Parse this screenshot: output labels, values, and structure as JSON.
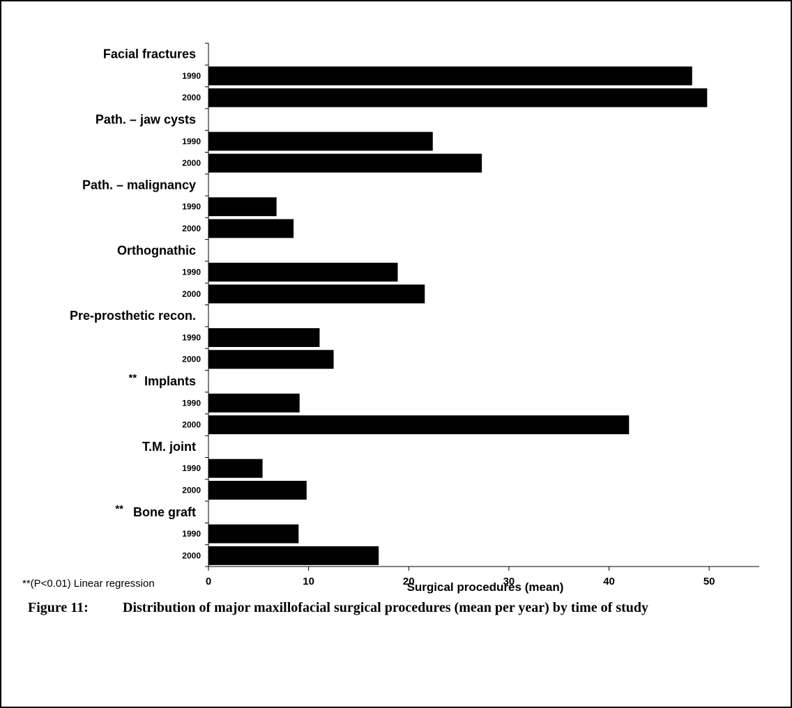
{
  "figure": {
    "label": "Figure 11:",
    "caption": "Distribution of major maxillofacial surgical procedures (mean per year) by time of study",
    "footnote": "**(P<0.01) Linear regression"
  },
  "chart_data": {
    "type": "bar",
    "orientation": "horizontal",
    "xlabel": "Surgical procedures (mean)",
    "xlim": [
      0,
      55
    ],
    "xticks": [
      0,
      10,
      20,
      30,
      40,
      50
    ],
    "grid": false,
    "bar_color": "#000000",
    "groups": [
      {
        "label": "Facial fractures",
        "marker": "",
        "bars": [
          {
            "year": "1990",
            "value": 48.3
          },
          {
            "year": "2000",
            "value": 49.8
          }
        ]
      },
      {
        "label": "Path. – jaw cysts",
        "marker": "",
        "bars": [
          {
            "year": "1990",
            "value": 22.4
          },
          {
            "year": "2000",
            "value": 27.3
          }
        ]
      },
      {
        "label": "Path. –  malignancy",
        "marker": "",
        "bars": [
          {
            "year": "1990",
            "value": 6.8
          },
          {
            "year": "2000",
            "value": 8.5
          }
        ]
      },
      {
        "label": "Orthognathic",
        "marker": "",
        "bars": [
          {
            "year": "1990",
            "value": 18.9
          },
          {
            "year": "2000",
            "value": 21.6
          }
        ]
      },
      {
        "label": "Pre-prosthetic recon.",
        "marker": "",
        "bars": [
          {
            "year": "1990",
            "value": 11.1
          },
          {
            "year": "2000",
            "value": 12.5
          }
        ]
      },
      {
        "label": "Implants",
        "marker": "**",
        "bars": [
          {
            "year": "1990",
            "value": 9.1
          },
          {
            "year": "2000",
            "value": 42.0
          }
        ]
      },
      {
        "label": "T.M. joint",
        "marker": "",
        "bars": [
          {
            "year": "1990",
            "value": 5.4
          },
          {
            "year": "2000",
            "value": 9.8
          }
        ]
      },
      {
        "label": "Bone graft",
        "marker": "**",
        "bars": [
          {
            "year": "1990",
            "value": 9.0
          },
          {
            "year": "2000",
            "value": 17.0
          }
        ]
      }
    ]
  }
}
